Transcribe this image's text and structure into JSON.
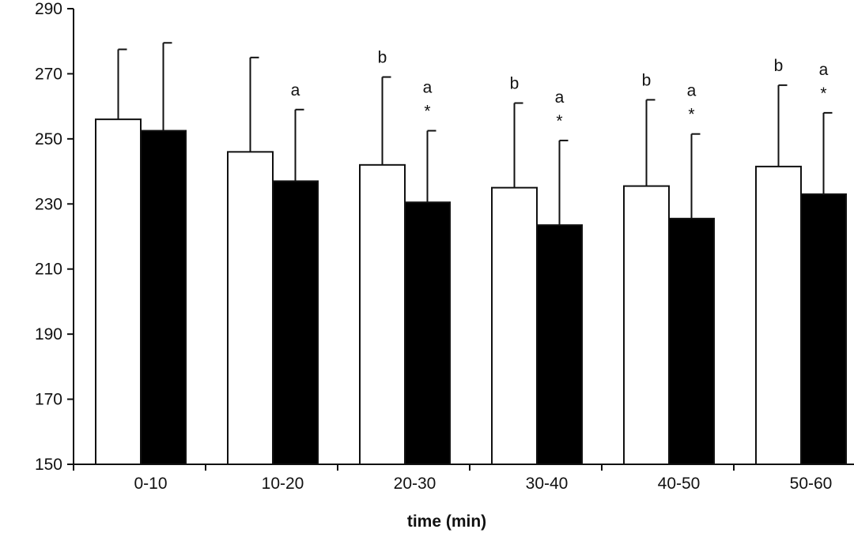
{
  "chart_data": {
    "type": "bar",
    "title": "",
    "xlabel": "time (min)",
    "ylabel": "",
    "ylim": [
      150,
      290
    ],
    "yticks": [
      "150",
      "170",
      "190",
      "210",
      "230",
      "250",
      "270",
      "290"
    ],
    "categories": [
      "0-10",
      "10-20",
      "20-30",
      "30-40",
      "40-50",
      "50-60"
    ],
    "series": [
      {
        "color": "#ffffff",
        "values": [
          256,
          246,
          242,
          235,
          235.5,
          241.5
        ],
        "error_upper": [
          277.5,
          275,
          269,
          261,
          262,
          266.5
        ],
        "annotations": [
          [],
          [],
          [
            "b"
          ],
          [
            "b"
          ],
          [
            "b"
          ],
          [
            "b"
          ]
        ]
      },
      {
        "color": "#000000",
        "values": [
          252.5,
          237,
          230.5,
          223.5,
          225.5,
          233
        ],
        "error_upper": [
          279.5,
          259,
          252.5,
          249.5,
          251.5,
          258
        ],
        "annotations": [
          [],
          [
            "a"
          ],
          [
            "a",
            "*"
          ],
          [
            "a",
            "*"
          ],
          [
            "a",
            "*"
          ],
          [
            "a",
            "*"
          ]
        ]
      }
    ],
    "grid": false,
    "legend": "none"
  }
}
